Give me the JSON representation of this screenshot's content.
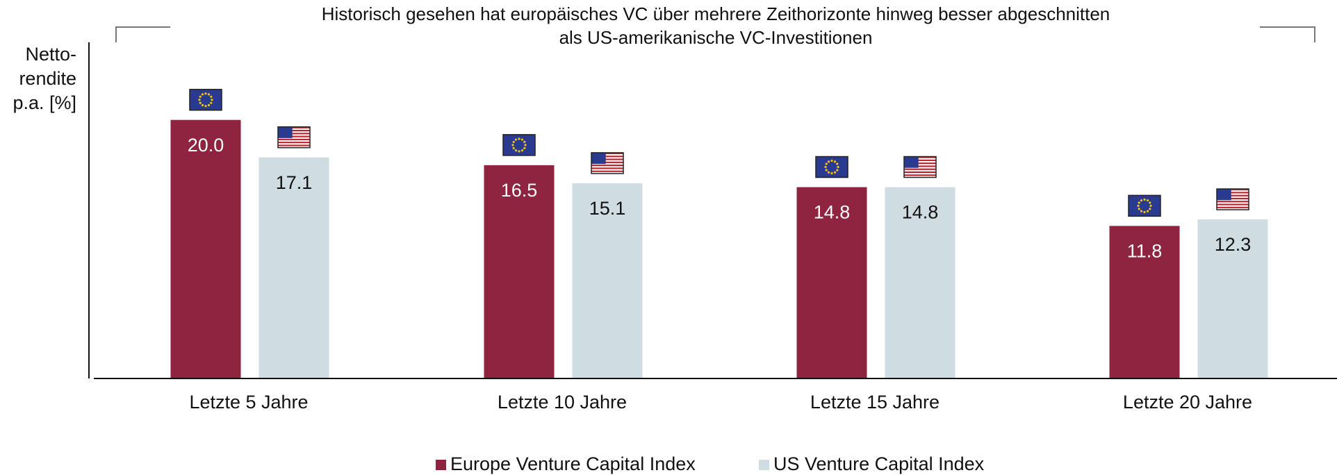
{
  "chart_data": {
    "type": "bar",
    "title": [
      "Historisch gesehen hat europäisches VC über mehrere Zeithorizonte hinweg besser abgeschnitten",
      "als US-amerikanische VC-Investitionen"
    ],
    "y_label": [
      "Netto-",
      "rendite",
      "p.a. [%]"
    ],
    "categories": [
      "Letzte 5 Jahre",
      "Letzte 10 Jahre",
      "Letzte 15 Jahre",
      "Letzte 20 Jahre"
    ],
    "series": [
      {
        "name": "Europe Venture Capital Index",
        "color": "#8e2440",
        "values": [
          20.0,
          16.5,
          14.8,
          11.8
        ],
        "value_labels": [
          "20.0",
          "16.5",
          "14.8",
          "11.8"
        ]
      },
      {
        "name": "US Venture Capital Index",
        "color": "#cfdde2",
        "values": [
          17.1,
          15.1,
          14.8,
          12.3
        ],
        "value_labels": [
          "17.1",
          "15.1",
          "14.8",
          "12.3"
        ]
      }
    ],
    "ylim": [
      0,
      26
    ],
    "grid": false,
    "legend": "bottom"
  }
}
